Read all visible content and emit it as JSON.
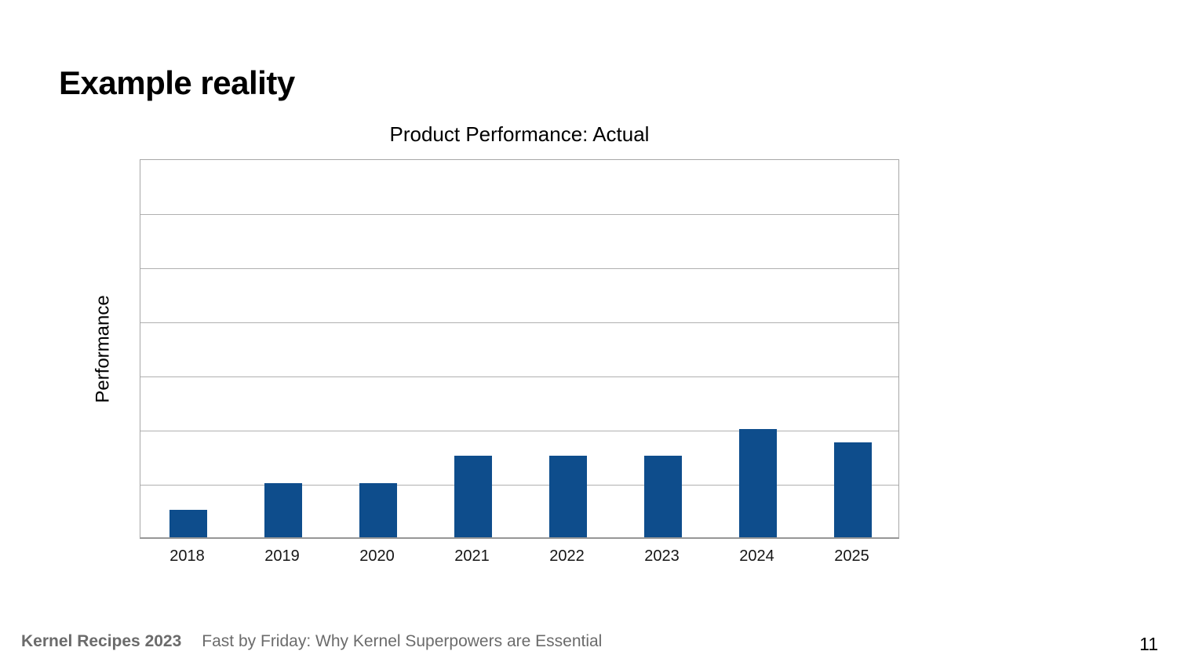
{
  "slide": {
    "title": "Example reality",
    "page_number": "11",
    "footer": {
      "event": "Kernel Recipes 2023",
      "talk": "Fast by Friday: Why Kernel Superpowers are Essential"
    }
  },
  "chart_data": {
    "type": "bar",
    "title": "Product Performance: Actual",
    "xlabel": "",
    "ylabel": "Performance",
    "categories": [
      "2018",
      "2019",
      "2020",
      "2021",
      "2022",
      "2023",
      "2024",
      "2025"
    ],
    "values": [
      0.5,
      1,
      1,
      1.5,
      1.5,
      1.5,
      2,
      1.75
    ],
    "ylim": [
      0,
      7
    ],
    "gridline_interval": 1,
    "grid": true,
    "legend_position": "none",
    "y_tick_labels_visible": false,
    "colors": {
      "bar": "#0e4d8c",
      "gridline": "#b0b0b0",
      "plot_border": "#a7a7a7",
      "axis_line": "#979797",
      "footer_text": "#6b6b6b",
      "title_text": "#000000"
    }
  }
}
